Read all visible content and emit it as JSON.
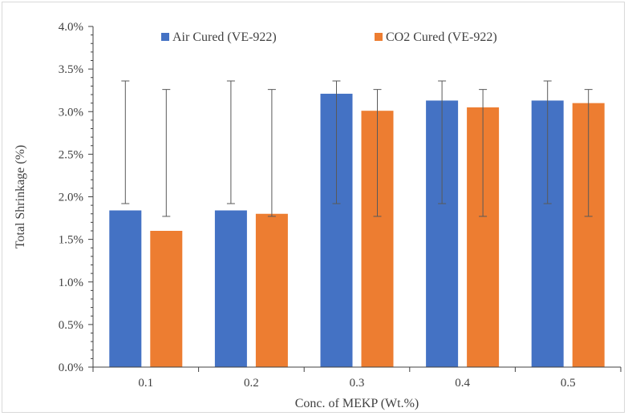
{
  "chart_data": {
    "type": "bar",
    "categories": [
      "0.1",
      "0.2",
      "0.3",
      "0.4",
      "0.5"
    ],
    "series": [
      {
        "name": "Air Cured (VE-922)",
        "color": "#4472c4",
        "values": [
          1.84,
          1.84,
          3.21,
          3.13,
          3.13
        ],
        "error_low": [
          1.92,
          1.92,
          1.92,
          1.92,
          1.92
        ],
        "error_high": [
          3.36,
          3.36,
          3.36,
          3.36,
          3.36
        ]
      },
      {
        "name": "CO2 Cured (VE-922)",
        "color": "#ed7d31",
        "values": [
          1.6,
          1.8,
          3.01,
          3.05,
          3.1
        ],
        "error_low": [
          1.77,
          1.77,
          1.77,
          1.77,
          1.77
        ],
        "error_high": [
          3.26,
          3.26,
          3.26,
          3.26,
          3.26
        ]
      }
    ],
    "xlabel": "Conc. of MEKP (Wt.%)",
    "ylabel": "Total Shrinkage (%)",
    "ylim": [
      0,
      4.0
    ],
    "yticks": [
      "0.0%",
      "0.5%",
      "1.0%",
      "1.5%",
      "2.0%",
      "2.5%",
      "3.0%",
      "3.5%",
      "4.0%"
    ],
    "grid": false,
    "legend_position": "top"
  }
}
